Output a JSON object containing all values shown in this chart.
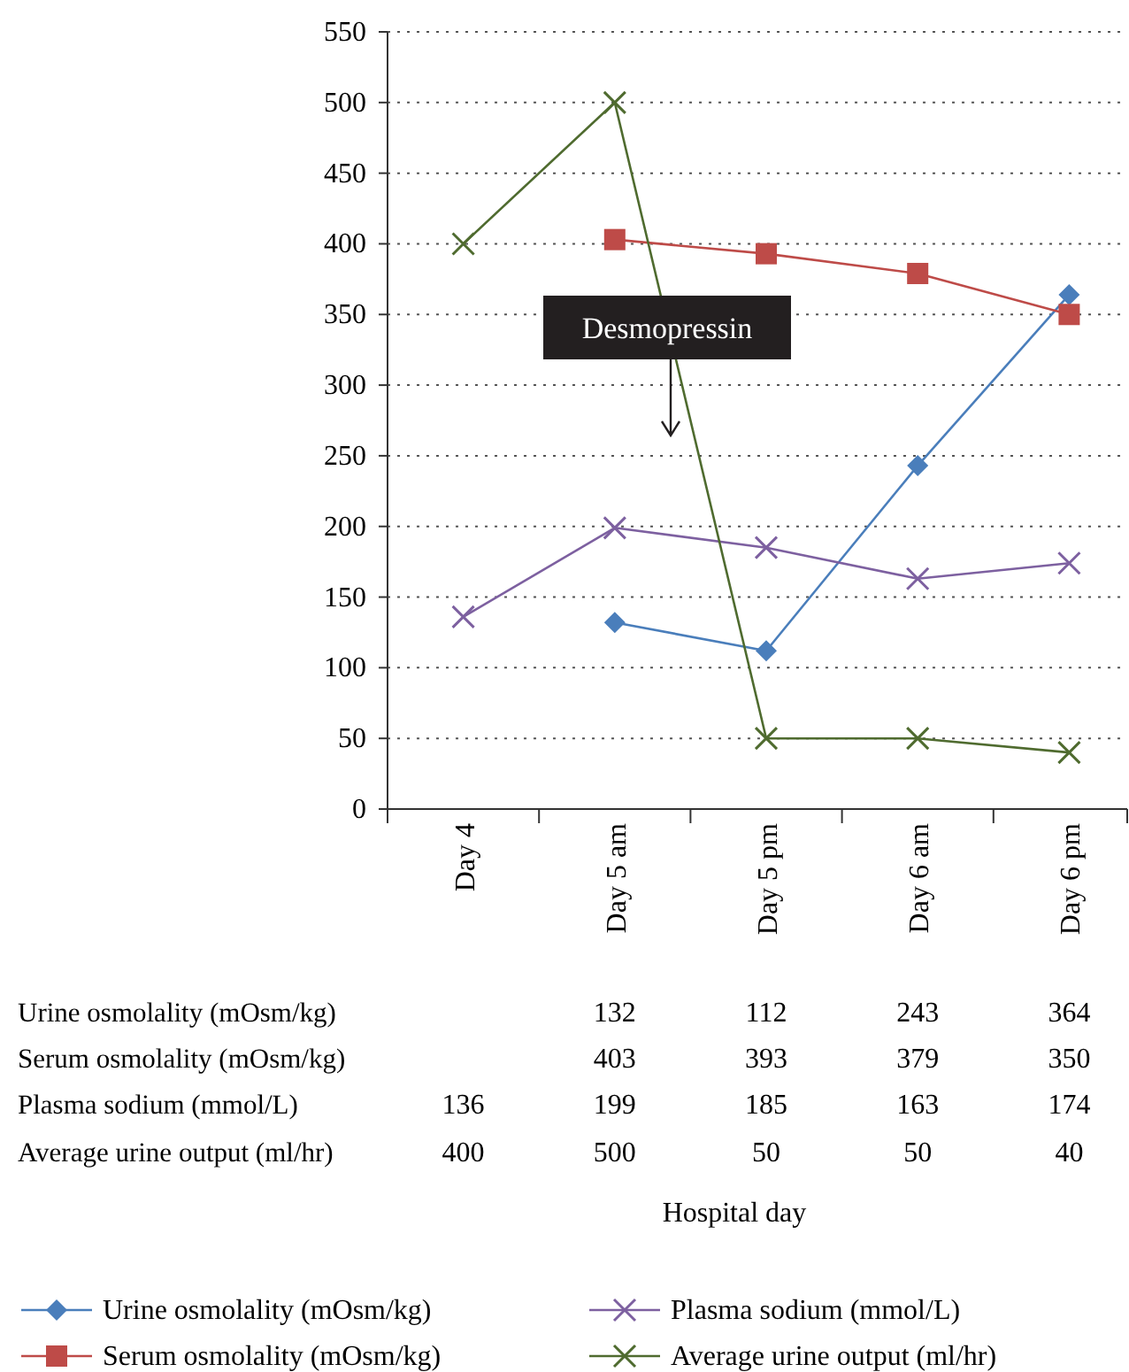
{
  "chart_data": {
    "type": "line",
    "categories": [
      "Day 4",
      "Day 5 am",
      "Day 5 pm",
      "Day 6 am",
      "Day 6 pm"
    ],
    "ylim": [
      0,
      550
    ],
    "yticks": [
      0,
      50,
      100,
      150,
      200,
      250,
      300,
      350,
      400,
      450,
      500,
      550
    ],
    "grid": "y",
    "legend": "bottom",
    "data_labels": true,
    "annotations": [
      "Desmopressin",
      "Hospital day"
    ],
    "series": [
      {
        "name": "Urine osmolality (mOsm/kg)",
        "color": "#4a7ebb",
        "marker": "diamond",
        "values": [
          null,
          132,
          112,
          243,
          364
        ]
      },
      {
        "name": "Serum osmolality (mOsm/kg)",
        "color": "#be4b48",
        "marker": "square",
        "values": [
          null,
          403,
          393,
          379,
          350
        ]
      },
      {
        "name": "Plasma sodium (mmol/L)",
        "color": "#7d60a0",
        "marker": "cross",
        "values": [
          136,
          199,
          185,
          163,
          174
        ]
      },
      {
        "name": "Average urine output (ml/hr)",
        "color": "#4f6b2f",
        "marker": "cross",
        "values": [
          400,
          500,
          50,
          50,
          40
        ]
      }
    ]
  }
}
